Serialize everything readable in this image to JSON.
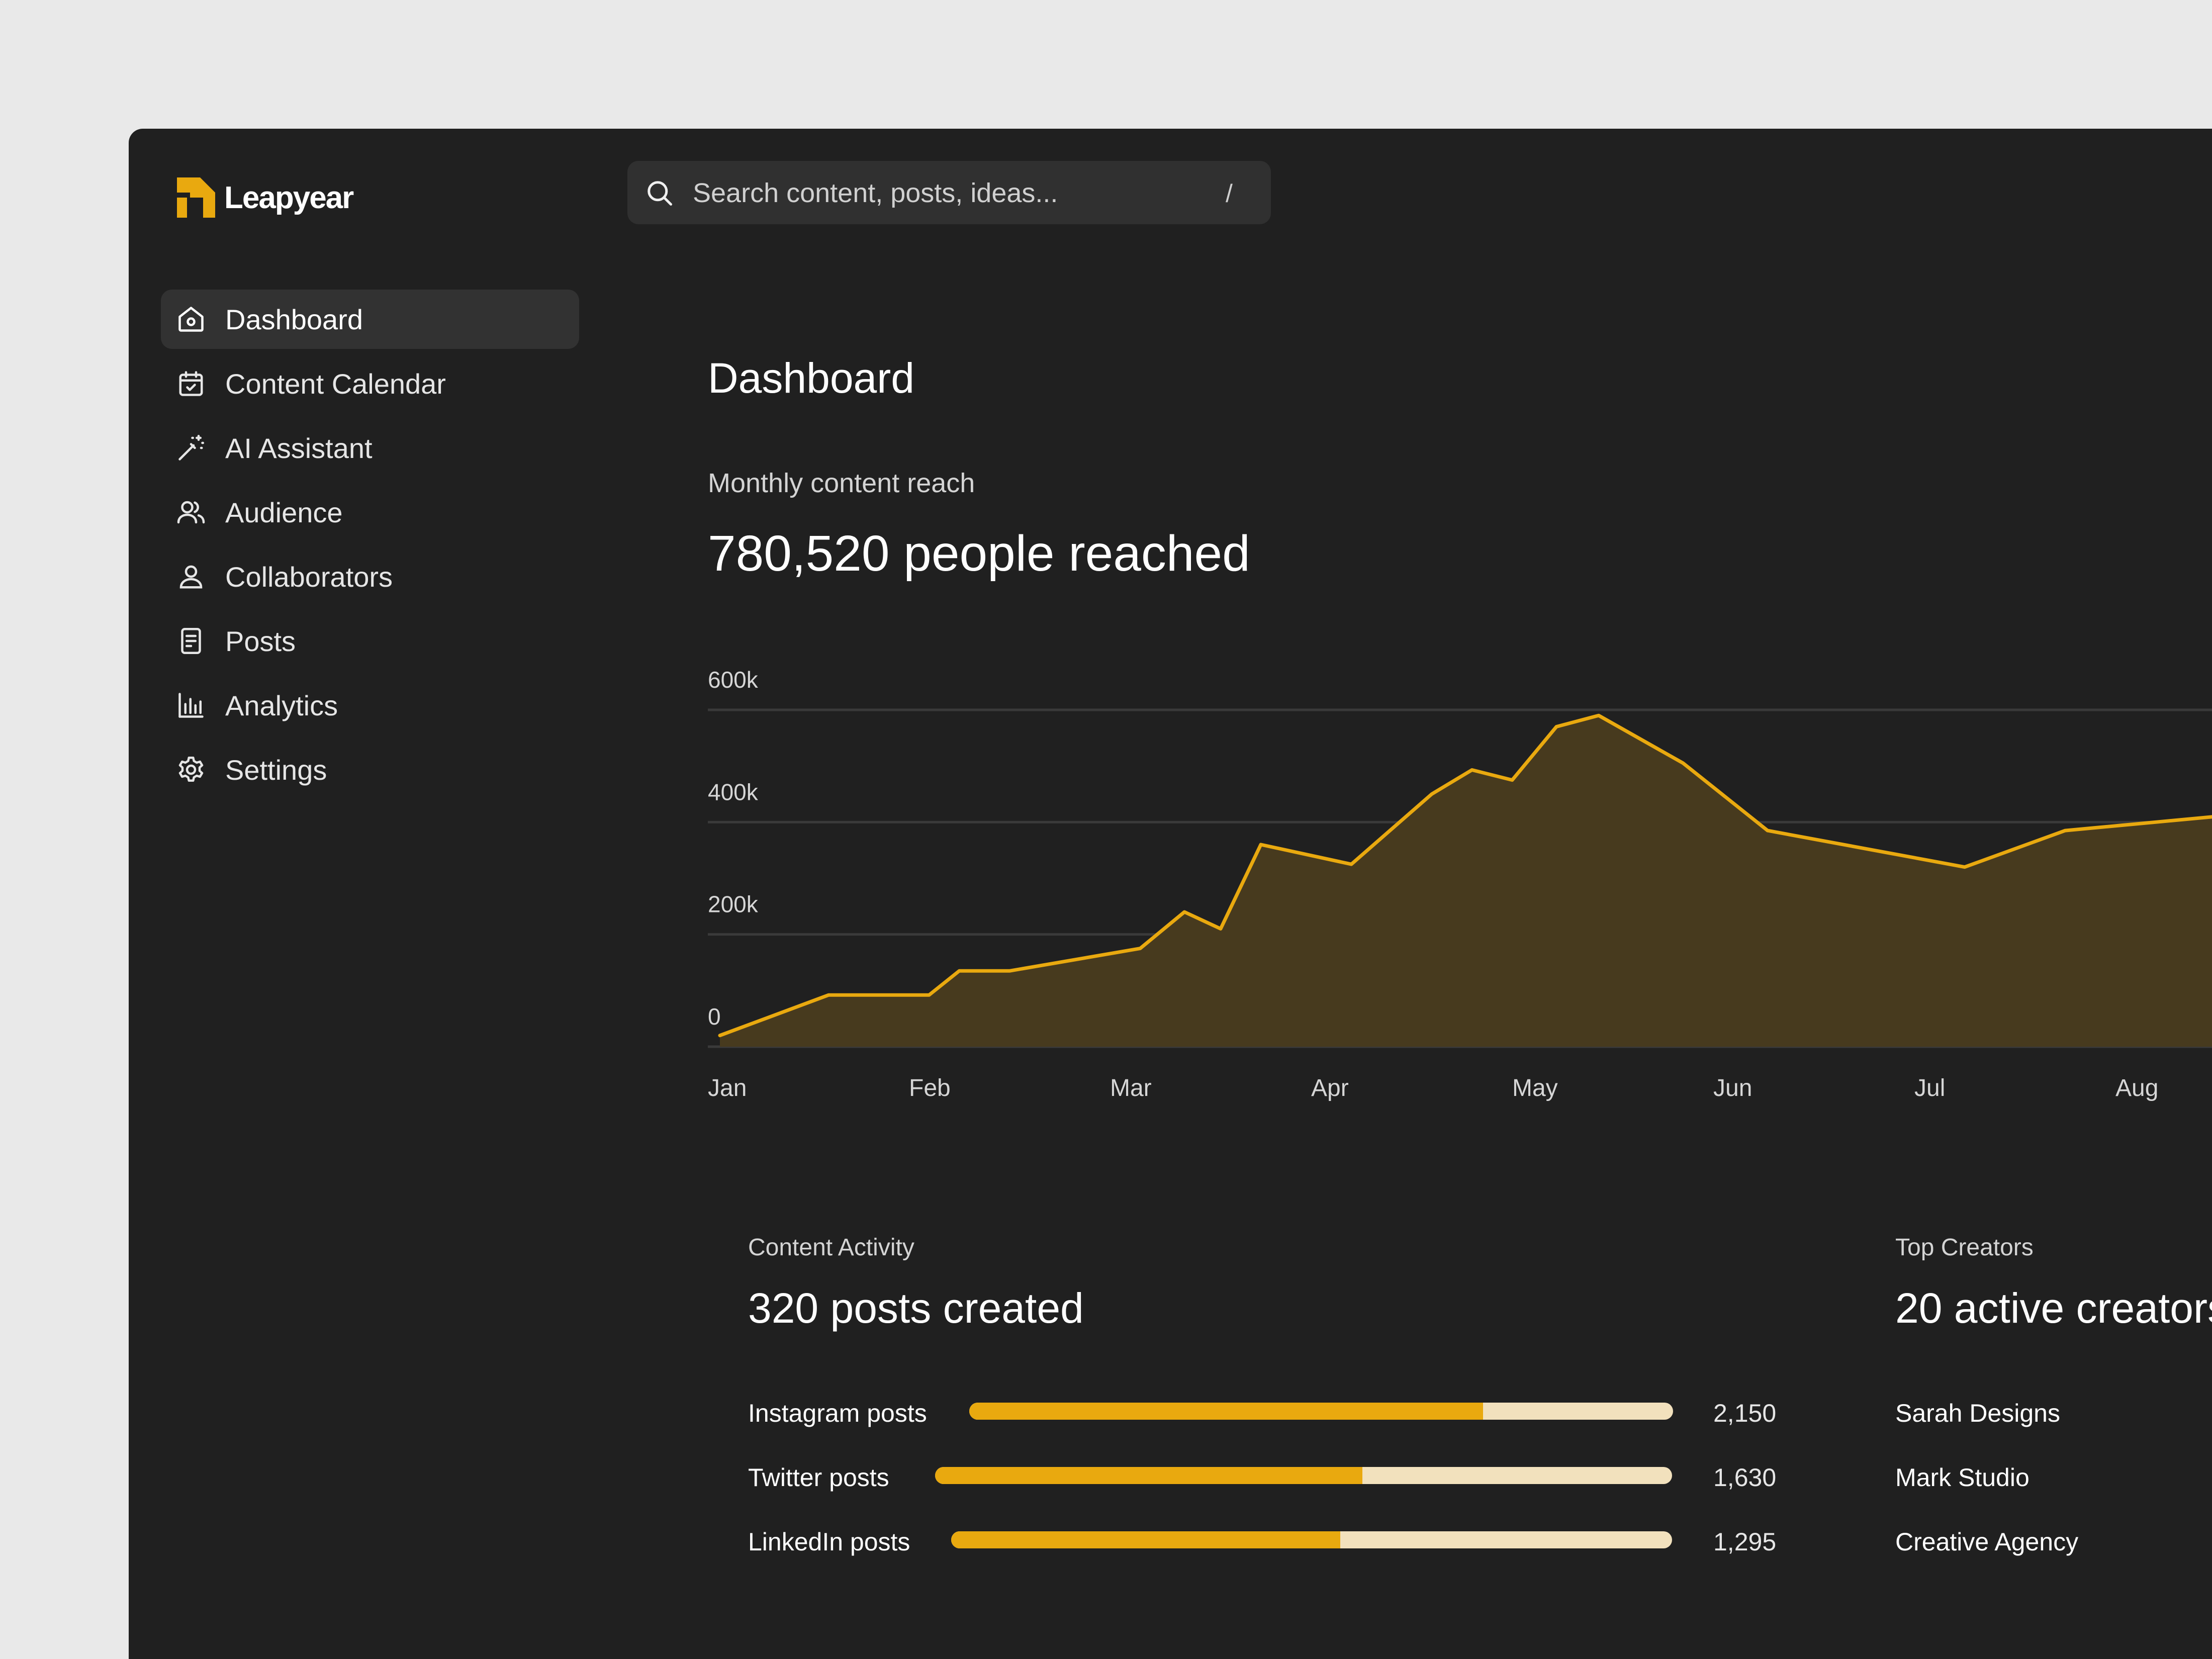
{
  "app": {
    "name": "Leapyear",
    "accent": "#e9a90f",
    "background": "#202020"
  },
  "search": {
    "placeholder": "Search content, posts, ideas...",
    "shortcut": "/"
  },
  "sidebar": {
    "items": [
      {
        "label": "Dashboard",
        "icon": "home-icon",
        "active": true
      },
      {
        "label": "Content Calendar",
        "icon": "calendar-icon"
      },
      {
        "label": "AI Assistant",
        "icon": "magic-wand-icon"
      },
      {
        "label": "Audience",
        "icon": "users-icon"
      },
      {
        "label": "Collaborators",
        "icon": "user-icon"
      },
      {
        "label": "Posts",
        "icon": "document-icon"
      },
      {
        "label": "Analytics",
        "icon": "bar-chart-icon"
      },
      {
        "label": "Settings",
        "icon": "gear-icon"
      }
    ]
  },
  "main": {
    "title": "Dashboard",
    "reach": {
      "label": "Monthly content reach",
      "value": "780,520 people reached"
    },
    "activity": {
      "label": "Content Activity",
      "value": "320 posts created",
      "rows": [
        {
          "label": "Instagram posts",
          "value": "2,150",
          "fill": 0.73
        },
        {
          "label": "Twitter posts",
          "value": "1,630",
          "fill": 0.58
        },
        {
          "label": "LinkedIn posts",
          "value": "1,295",
          "fill": 0.54
        }
      ]
    },
    "creators": {
      "label": "Top Creators",
      "value": "20 active creators",
      "items": [
        "Sarah Designs",
        "Mark Studio",
        "Creative Agency"
      ]
    }
  },
  "chart_data": {
    "type": "area",
    "title": "",
    "xlabel": "",
    "ylabel": "",
    "x_ticks": [
      "Jan",
      "Feb",
      "Mar",
      "Apr",
      "May",
      "Jun",
      "Jul",
      "Aug"
    ],
    "y_ticks": [
      "0",
      "200k",
      "400k",
      "600k"
    ],
    "ylim": [
      0,
      600000
    ],
    "grid": true,
    "line_color": "#e9a90f",
    "fill_color": "#473a1e",
    "series": [
      {
        "x": [
          0.06,
          0.6,
          1.1,
          1.25,
          1.5,
          2.15,
          2.37,
          2.55,
          2.75,
          3.2,
          3.6,
          3.8,
          4.0,
          4.22,
          4.43,
          4.85,
          5.27,
          6.25,
          6.75,
          7.2
        ],
        "values": [
          20000,
          92000,
          92000,
          135000,
          135000,
          175000,
          240000,
          210000,
          360000,
          325000,
          450000,
          493000,
          475000,
          570000,
          590000,
          505000,
          385000,
          320000,
          385000,
          400000
        ]
      }
    ]
  }
}
